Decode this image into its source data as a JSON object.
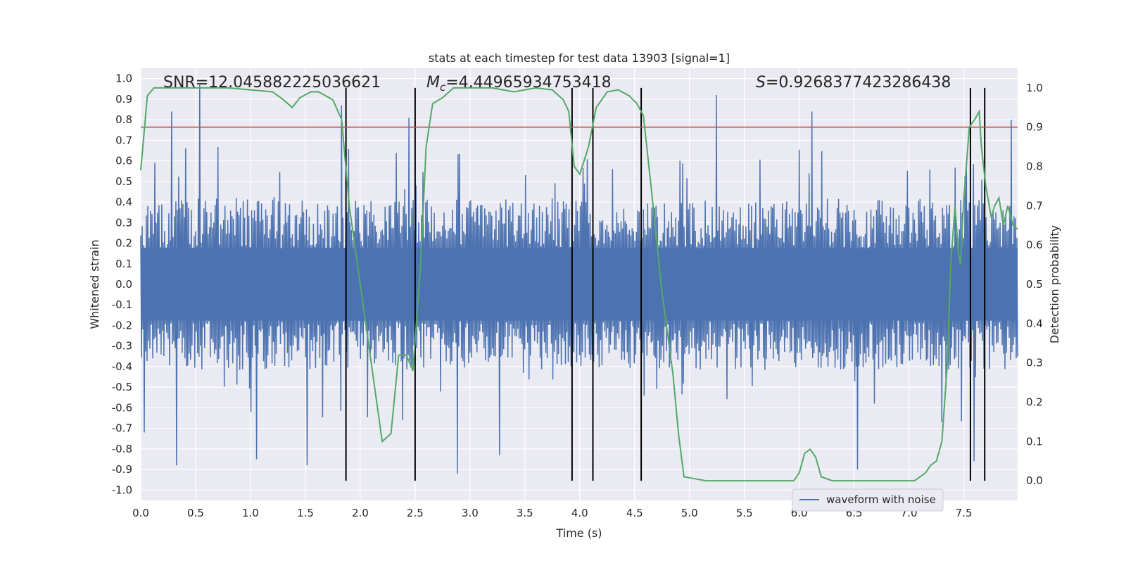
{
  "chart_data": {
    "type": "line",
    "title": "stats at each timestep for test data 13903 [signal=1]",
    "xlabel": "Time (s)",
    "ylabel": "Whitened strain",
    "ylabel_right": "Detection probability",
    "xlim": [
      0.0,
      7.99
    ],
    "ylim": [
      -1.05,
      1.05
    ],
    "ylim_right": [
      -0.05,
      1.05
    ],
    "x_ticks": [
      "0.0",
      "0.5",
      "1.0",
      "1.5",
      "2.0",
      "2.5",
      "3.0",
      "3.5",
      "4.0",
      "4.5",
      "5.0",
      "5.5",
      "6.0",
      "6.5",
      "7.0",
      "7.5"
    ],
    "x_tick_values": [
      0.0,
      0.5,
      1.0,
      1.5,
      2.0,
      2.5,
      3.0,
      3.5,
      4.0,
      4.5,
      5.0,
      5.5,
      6.0,
      6.5,
      7.0,
      7.5
    ],
    "y_ticks": [
      "1.0",
      "0.9",
      "0.8",
      "0.7",
      "0.6",
      "0.5",
      "0.4",
      "0.3",
      "0.2",
      "0.1",
      "0.0",
      "-0.1",
      "-0.2",
      "-0.3",
      "-0.4",
      "-0.5",
      "-0.6",
      "-0.7",
      "-0.8",
      "-0.9",
      "-1.0"
    ],
    "y_tick_values": [
      1.0,
      0.9,
      0.8,
      0.7,
      0.6,
      0.5,
      0.4,
      0.3,
      0.2,
      0.1,
      0.0,
      -0.1,
      -0.2,
      -0.3,
      -0.4,
      -0.5,
      -0.6,
      -0.7,
      -0.8,
      -0.9,
      -1.0
    ],
    "y_right_ticks": [
      "1.0",
      "0.9",
      "0.8",
      "0.7",
      "0.6",
      "0.5",
      "0.4",
      "0.3",
      "0.2",
      "0.1",
      "0.0"
    ],
    "y_right_tick_values": [
      1.0,
      0.9,
      0.8,
      0.7,
      0.6,
      0.5,
      0.4,
      0.3,
      0.2,
      0.1,
      0.0
    ],
    "grid": true,
    "legend": {
      "label": "waveform with noise",
      "placement": "lower-right"
    },
    "annotations": [
      {
        "name": "snr",
        "text": "SNR=12.045882225036621"
      },
      {
        "name": "mc",
        "prefix": "M",
        "sub": "c",
        "text": "=4.44965934753418"
      },
      {
        "name": "s",
        "prefix": "S",
        "text": "=0.9268377423286438"
      }
    ],
    "threshold": {
      "value_right": 0.9,
      "color": "#c44e52"
    },
    "vertical_lines_x": [
      1.87,
      2.5,
      3.93,
      4.12,
      4.56,
      7.56,
      7.69
    ],
    "waveform": {
      "name": "waveform with noise",
      "color": "#4c72b0",
      "envelope_typical": 0.32,
      "peaks": [
        {
          "x": 0.28,
          "y": 0.84
        },
        {
          "x": 0.54,
          "y": 0.97
        },
        {
          "x": 1.83,
          "y": 0.87
        },
        {
          "x": 2.45,
          "y": 0.81
        },
        {
          "x": 5.25,
          "y": 0.92
        },
        {
          "x": 6.12,
          "y": 0.84
        },
        {
          "x": 7.93,
          "y": 0.8
        },
        {
          "x": 0.33,
          "y": -0.88
        },
        {
          "x": 1.05,
          "y": -0.85
        },
        {
          "x": 1.52,
          "y": -0.88
        },
        {
          "x": 2.89,
          "y": -0.92
        },
        {
          "x": 6.53,
          "y": -0.9
        },
        {
          "x": 7.59,
          "y": -0.86
        },
        {
          "x": 0.03,
          "y": -0.72
        },
        {
          "x": 3.27,
          "y": -0.83
        }
      ]
    },
    "series": [
      {
        "name": "detection probability",
        "color": "#55a868",
        "x": [
          0.0,
          0.06,
          0.12,
          0.2,
          0.5,
          0.8,
          1.0,
          1.2,
          1.3,
          1.38,
          1.45,
          1.55,
          1.62,
          1.75,
          1.83,
          1.9,
          2.0,
          2.1,
          2.2,
          2.28,
          2.35,
          2.42,
          2.48,
          2.55,
          2.6,
          2.66,
          2.75,
          2.85,
          3.0,
          3.2,
          3.4,
          3.6,
          3.75,
          3.85,
          3.9,
          3.95,
          4.0,
          4.08,
          4.15,
          4.25,
          4.35,
          4.45,
          4.52,
          4.58,
          4.65,
          4.75,
          4.85,
          4.9,
          4.95,
          5.05,
          5.15,
          5.4,
          5.6,
          5.8,
          5.95,
          6.0,
          6.05,
          6.1,
          6.15,
          6.2,
          6.3,
          6.5,
          6.7,
          6.9,
          7.05,
          7.1,
          7.15,
          7.2,
          7.25,
          7.3,
          7.35,
          7.38,
          7.42,
          7.45,
          7.47,
          7.5,
          7.55,
          7.6,
          7.64,
          7.66,
          7.7,
          7.75,
          7.78,
          7.82,
          7.86,
          7.9,
          7.95,
          7.99
        ],
        "y": [
          0.79,
          0.98,
          1.0,
          1.0,
          1.0,
          1.0,
          0.995,
          0.99,
          0.97,
          0.95,
          0.975,
          0.99,
          0.99,
          0.97,
          0.92,
          0.7,
          0.5,
          0.3,
          0.1,
          0.12,
          0.32,
          0.32,
          0.28,
          0.55,
          0.85,
          0.96,
          0.975,
          1.0,
          1.0,
          1.0,
          0.99,
          1.0,
          0.995,
          0.97,
          0.94,
          0.8,
          0.78,
          0.85,
          0.95,
          0.99,
          0.995,
          0.98,
          0.96,
          0.93,
          0.75,
          0.48,
          0.27,
          0.12,
          0.01,
          0.005,
          0.0,
          0.0,
          0.0,
          0.0,
          0.0,
          0.02,
          0.07,
          0.08,
          0.06,
          0.01,
          0.0,
          0.0,
          0.0,
          0.0,
          0.0,
          0.01,
          0.02,
          0.04,
          0.05,
          0.1,
          0.3,
          0.55,
          0.7,
          0.58,
          0.55,
          0.72,
          0.9,
          0.92,
          0.94,
          0.85,
          0.75,
          0.67,
          0.7,
          0.72,
          0.65,
          0.7,
          0.65,
          0.64
        ]
      }
    ]
  }
}
